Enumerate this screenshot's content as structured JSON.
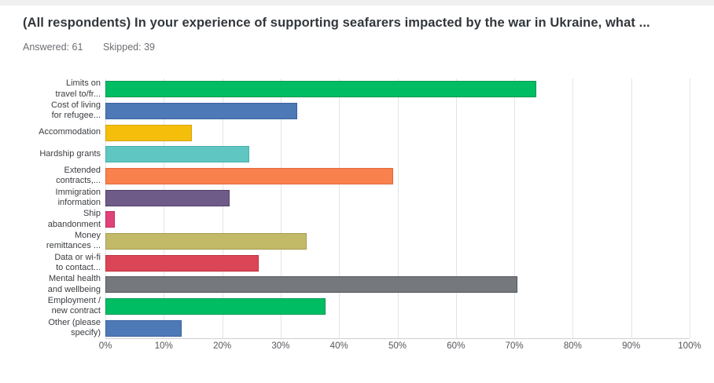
{
  "header": {
    "title": "(All respondents) In your experience of supporting seafarers impacted by the war in Ukraine, what ...",
    "answered_label": "Answered:",
    "answered_value": "61",
    "skipped_label": "Skipped:",
    "skipped_value": "39"
  },
  "chart_data": {
    "type": "bar",
    "orientation": "horizontal",
    "title": "",
    "xlabel": "",
    "ylabel": "",
    "xlim": [
      0,
      100
    ],
    "grid": "vertical-only",
    "legend": "none",
    "x_ticks": [
      "0%",
      "10%",
      "20%",
      "30%",
      "40%",
      "50%",
      "60%",
      "70%",
      "80%",
      "90%",
      "100%"
    ],
    "categories": [
      "Limits on\ntravel to/fr...",
      "Cost of living\nfor refugee...",
      "Accommodation",
      "Hardship grants",
      "Extended\ncontracts,...",
      "Immigration\ninformation",
      "Ship\nabandonment",
      "Money\nremittances ...",
      "Data or wi-fi\nto contact...",
      "Mental health\nand wellbeing",
      "Employment /\nnew contract",
      "Other (please\nspecify)"
    ],
    "values": [
      73.8,
      32.8,
      14.8,
      24.6,
      49.2,
      21.3,
      1.6,
      34.4,
      26.2,
      70.5,
      37.7,
      13.1
    ],
    "value_unit": "%",
    "bar_colors": [
      "#00BD64",
      "#4E79B7",
      "#F5BE0B",
      "#5FC6C2",
      "#F8814E",
      "#6E5B87",
      "#E04379",
      "#C3BA68",
      "#DA4655",
      "#75797E",
      "#00BD64",
      "#4E79B7"
    ],
    "bar_border_colors": [
      "#00994F",
      "#3B62A0",
      "#D6A300",
      "#45B0AC",
      "#E2683B",
      "#55406E",
      "#C02A60",
      "#A59C4F",
      "#C03040",
      "#54575C",
      "#00994F",
      "#3B62A0"
    ]
  }
}
